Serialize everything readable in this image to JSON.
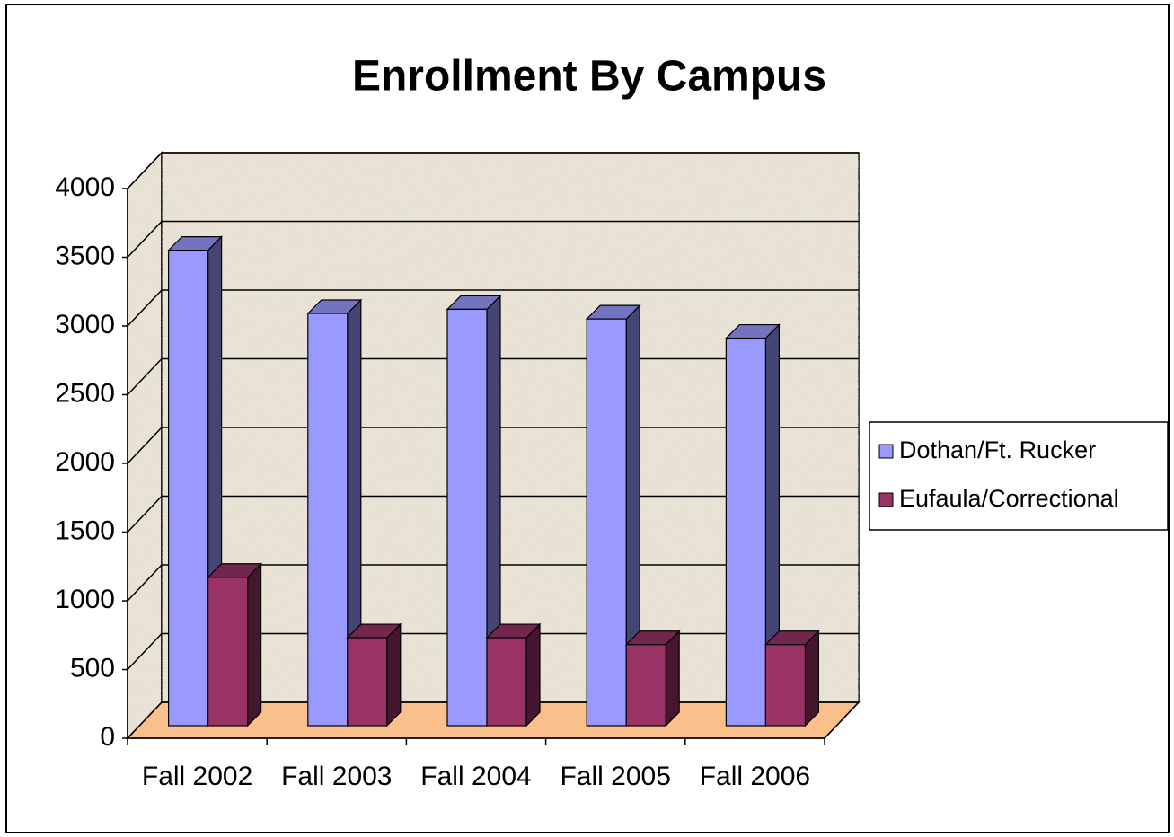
{
  "chart_data": {
    "type": "bar",
    "title": "Enrollment By Campus",
    "categories": [
      "Fall 2002",
      "Fall 2003",
      "Fall 2004",
      "Fall 2005",
      "Fall 2006"
    ],
    "series": [
      {
        "name": "Dothan/Ft. Rucker",
        "color": "#9999ff",
        "values": [
          3460,
          3000,
          3030,
          2960,
          2820
        ]
      },
      {
        "name": "Eufaula/Correctional",
        "color": "#993366",
        "values": [
          1080,
          640,
          640,
          590,
          590
        ]
      }
    ],
    "ylim": [
      0,
      4000
    ],
    "yticks": [
      0,
      500,
      1000,
      1500,
      2000,
      2500,
      3000,
      3500,
      4000
    ],
    "grid": true,
    "legend": "right"
  }
}
